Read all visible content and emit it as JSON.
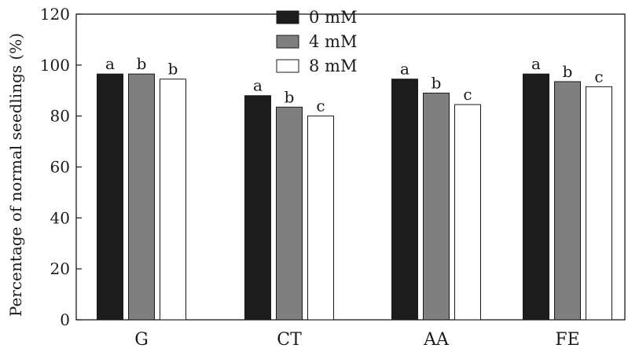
{
  "chart_data": {
    "type": "bar",
    "title": "",
    "xlabel": "",
    "ylabel": "Percentage of normal seedlings (%)",
    "ylim": [
      0,
      120
    ],
    "yticks": [
      0,
      20,
      40,
      60,
      80,
      100,
      120
    ],
    "categories": [
      "G",
      "CT",
      "AA",
      "FE"
    ],
    "series": [
      {
        "name": "0 mM",
        "color": "#1c1c1c",
        "values": [
          96.5,
          88,
          94.5,
          96.5
        ],
        "letters": [
          "a",
          "a",
          "a",
          "a"
        ]
      },
      {
        "name": "4 mM",
        "color": "#7f7f7f",
        "values": [
          96.5,
          83.5,
          89,
          93.5
        ],
        "letters": [
          "b",
          "b",
          "b",
          "b"
        ]
      },
      {
        "name": "8 mM",
        "color": "#ffffff",
        "values": [
          94.5,
          80,
          84.5,
          91.5
        ],
        "letters": [
          "b",
          "c",
          "c",
          "c"
        ]
      }
    ],
    "legend_position": "top-center",
    "grid": false
  }
}
